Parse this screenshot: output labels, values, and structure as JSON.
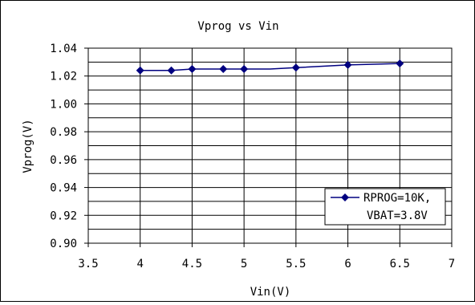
{
  "chart_data": {
    "type": "line",
    "title": "Vprog vs Vin",
    "xlabel": "Vin(V)",
    "ylabel": "Vprog(V)",
    "xlim": [
      3.5,
      7
    ],
    "ylim": [
      0.9,
      1.04
    ],
    "x_ticks": [
      "3.5",
      "4",
      "4.5",
      "5",
      "5.5",
      "6",
      "6.5",
      "7"
    ],
    "x_tick_values": [
      3.5,
      4,
      4.5,
      5,
      5.5,
      6,
      6.5,
      7
    ],
    "y_ticks": [
      "1.04",
      "1.02",
      "1.00",
      "0.98",
      "0.96",
      "0.94",
      "0.92",
      "0.90"
    ],
    "y_tick_values": [
      1.04,
      1.02,
      1.0,
      0.98,
      0.96,
      0.94,
      0.92,
      0.9
    ],
    "grid": true,
    "legend_position": "bottom-right",
    "series": [
      {
        "name": "RPROG=10K,\nVBAT=3.8V",
        "legend_lines": [
          "RPROG=10K,",
          "VBAT=3.8V"
        ],
        "color": "#000080",
        "marker": "diamond",
        "x": [
          4.0,
          4.3,
          4.5,
          4.8,
          5.0,
          5.25,
          5.5,
          6.0,
          6.5
        ],
        "y": [
          1.024,
          1.024,
          1.025,
          1.025,
          1.025,
          1.025,
          1.026,
          1.028,
          1.029
        ],
        "marker_x": [
          4.0,
          4.3,
          4.5,
          4.8,
          5.0,
          5.5,
          6.0,
          6.5
        ],
        "marker_y": [
          1.024,
          1.024,
          1.025,
          1.025,
          1.025,
          1.026,
          1.028,
          1.029
        ]
      }
    ]
  }
}
